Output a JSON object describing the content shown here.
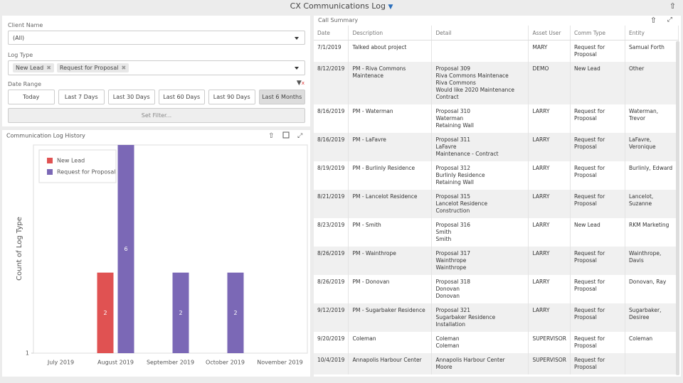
{
  "header": {
    "title": "CX Communications Log"
  },
  "filters": {
    "client_name": {
      "label": "Client Name",
      "value": "(All)"
    },
    "log_type": {
      "label": "Log Type",
      "tags": [
        "New Lead",
        "Request for Proposal"
      ]
    },
    "date_range": {
      "label": "Date Range",
      "options": [
        "Today",
        "Last 7 Days",
        "Last 30 Days",
        "Last 60 Days",
        "Last 90 Days",
        "Last 6 Months"
      ],
      "selected": 5
    },
    "set_filter": "Set Filter..."
  },
  "chart_data": {
    "type": "bar",
    "title": "Communication Log History",
    "y_label": "Count of Log Type",
    "categories": [
      "July 2019",
      "August 2019",
      "September 2019",
      "October 2019",
      "November 2019"
    ],
    "series": [
      {
        "name": "New Lead",
        "color": "#e05252",
        "values": [
          null,
          2,
          null,
          null,
          null
        ]
      },
      {
        "name": "Request for Proposal",
        "color": "#7b68b6",
        "values": [
          null,
          6,
          2,
          2,
          null
        ]
      }
    ],
    "ylim": [
      1,
      6
    ],
    "yticks": [
      1
    ],
    "log_scale": true,
    "legend": "top-left",
    "data_labels": true
  },
  "table": {
    "title": "Call Summary",
    "columns": [
      "Date",
      "Description",
      "Detail",
      "Asset User",
      "Comm Type",
      "Entity"
    ],
    "rows": [
      [
        "7/1/2019",
        "Talked about project",
        [],
        "MARY",
        "Request for Proposal",
        "Samual Forth"
      ],
      [
        "8/12/2019",
        "PM - Riva Commons Maintenace",
        [
          "Proposal 309",
          "Riva Commons Maintenace",
          "Riva Commons",
          "Would like 2020 Maintenance Contract"
        ],
        "DEMO",
        "New Lead",
        "Other"
      ],
      [
        "8/16/2019",
        "PM - Waterman",
        [
          "Proposal 310",
          "Waterman",
          "Retaining Wall"
        ],
        "LARRY",
        "Request for Proposal",
        "Waterman, Trevor"
      ],
      [
        "8/16/2019",
        "PM - LaFavre",
        [
          "Proposal 311",
          "LaFavre",
          "Maintenance - Contract"
        ],
        "LARRY",
        "Request for Proposal",
        "LaFavre, Veronique"
      ],
      [
        "8/19/2019",
        "PM - Burlinly Residence",
        [
          "Proposal 312",
          "Burlinly Residence",
          "Retaining Wall"
        ],
        "LARRY",
        "Request for Proposal",
        "Burlinly, Edward"
      ],
      [
        "8/21/2019",
        "PM - Lancelot Residence",
        [
          "Proposal 315",
          "Lancelot Residence",
          "Construction"
        ],
        "LARRY",
        "Request for Proposal",
        "Lancelot, Suzanne"
      ],
      [
        "8/23/2019",
        "PM - Smith",
        [
          "Proposal 316",
          "Smith",
          "Smith"
        ],
        "LARRY",
        "New Lead",
        "RKM Marketing"
      ],
      [
        "8/26/2019",
        "PM - Wainthrope",
        [
          "Proposal 317",
          "Wainthrope",
          "Wainthrope"
        ],
        "LARRY",
        "Request for Proposal",
        "Wainthrope, Davis"
      ],
      [
        "8/26/2019",
        "PM - Donovan",
        [
          "Proposal 318",
          "Donovan",
          "Donovan"
        ],
        "LARRY",
        "Request for Proposal",
        "Donovan, Ray"
      ],
      [
        "9/12/2019",
        "PM - Sugarbaker Residence",
        [
          "Proposal 321",
          "Sugarbaker Residence",
          "Installation"
        ],
        "LARRY",
        "Request for Proposal",
        "Sugarbaker, Desiree"
      ],
      [
        "9/20/2019",
        "Coleman",
        [
          "Coleman",
          "Coleman"
        ],
        "SUPERVISOR",
        "Request for Proposal",
        "Coleman"
      ],
      [
        "10/4/2019",
        "Annapolis Harbour Center",
        [
          "Annapolis Harbour Center",
          "Moore"
        ],
        "SUPERVISOR",
        "Request for Proposal",
        null
      ]
    ]
  }
}
